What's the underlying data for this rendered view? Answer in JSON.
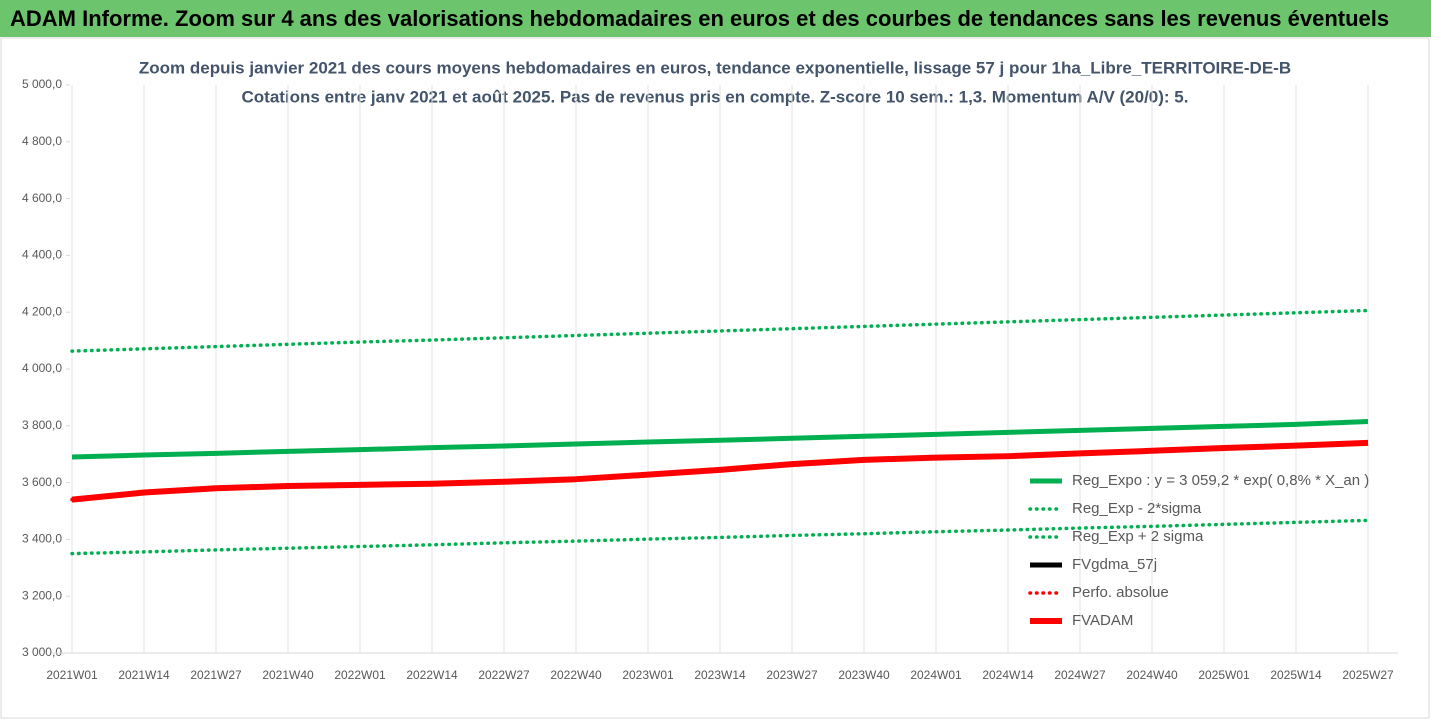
{
  "header": {
    "title": "ADAM Informe. Zoom sur 4 ans des valorisations hebdomadaires en euros et des courbes de tendances sans les revenus éventuels"
  },
  "chart_data": {
    "type": "line",
    "title": "Zoom depuis janvier 2021 des cours moyens hebdomadaires en euros, tendance exponentielle, lissage 57 j pour 1ha_Libre_TERRITOIRE-DE-B",
    "subtitle": "Cotations entre janv 2021 et août 2025.  Pas de revenus pris en compte. Z-score 10 sem.: 1,3. Momentum A/V (20/0): 5.",
    "categories": [
      "2021W01",
      "2021W14",
      "2021W27",
      "2021W40",
      "2022W01",
      "2022W14",
      "2022W27",
      "2022W40",
      "2023W01",
      "2023W14",
      "2023W27",
      "2023W40",
      "2024W01",
      "2024W14",
      "2024W27",
      "2024W40",
      "2025W01",
      "2025W14",
      "2025W27"
    ],
    "ylim": [
      3000,
      5000
    ],
    "yticks": [
      {
        "value": 3000,
        "label": "3 000,0"
      },
      {
        "value": 3200,
        "label": "3 200,0"
      },
      {
        "value": 3400,
        "label": "3 400,0"
      },
      {
        "value": 3600,
        "label": "3 600,0"
      },
      {
        "value": 3800,
        "label": "3 800,0"
      },
      {
        "value": 4000,
        "label": "4 000,0"
      },
      {
        "value": 4200,
        "label": "4 200,0"
      },
      {
        "value": 4400,
        "label": "4 400,0"
      },
      {
        "value": 4600,
        "label": "4 600,0"
      },
      {
        "value": 4800,
        "label": "4 800,0"
      },
      {
        "value": 5000,
        "label": "5 000,0"
      }
    ],
    "grid": true,
    "legend": "right",
    "series": [
      {
        "name": "Reg_Expo : y = 3 059,2 * exp( 0,8% *  X_an )",
        "color": "#00b050",
        "style": "solid",
        "values": [
          3690,
          3697,
          3703,
          3710,
          3716,
          3723,
          3729,
          3736,
          3743,
          3749,
          3756,
          3763,
          3770,
          3777,
          3784,
          3791,
          3798,
          3805,
          3815
        ]
      },
      {
        "name": "Reg_Exp - 2*sigma",
        "color": "#00b050",
        "style": "dotted",
        "values": [
          3350,
          3356,
          3363,
          3369,
          3375,
          3381,
          3388,
          3394,
          3401,
          3407,
          3414,
          3420,
          3427,
          3433,
          3440,
          3446,
          3453,
          3460,
          3467
        ]
      },
      {
        "name": "Reg_Exp + 2 sigma",
        "color": "#00b050",
        "style": "dotted",
        "values": [
          4063,
          4071,
          4079,
          4087,
          4095,
          4102,
          4110,
          4118,
          4126,
          4134,
          4142,
          4150,
          4158,
          4166,
          4174,
          4182,
          4190,
          4198,
          4206
        ]
      },
      {
        "name": "FVgdma_57j",
        "color": "#000000",
        "style": "solid",
        "values": [
          3540,
          3565,
          3580,
          3588,
          3592,
          3596,
          3603,
          3612,
          3628,
          3645,
          3665,
          3680,
          3688,
          3693,
          3703,
          3712,
          3722,
          3730,
          3740
        ]
      },
      {
        "name": "Perfo. absolue",
        "color": "#ff0000",
        "style": "dotted",
        "values": [
          3540,
          3565,
          3580,
          3588,
          3592,
          3596,
          3603,
          3612,
          3628,
          3645,
          3665,
          3680,
          3688,
          3693,
          3703,
          3712,
          3722,
          3730,
          3740
        ]
      },
      {
        "name": "FVADAM",
        "color": "#ff0000",
        "style": "thick",
        "values": [
          3540,
          3565,
          3580,
          3588,
          3592,
          3596,
          3603,
          3612,
          3628,
          3645,
          3665,
          3680,
          3688,
          3693,
          3703,
          3712,
          3722,
          3730,
          3740
        ]
      }
    ]
  }
}
